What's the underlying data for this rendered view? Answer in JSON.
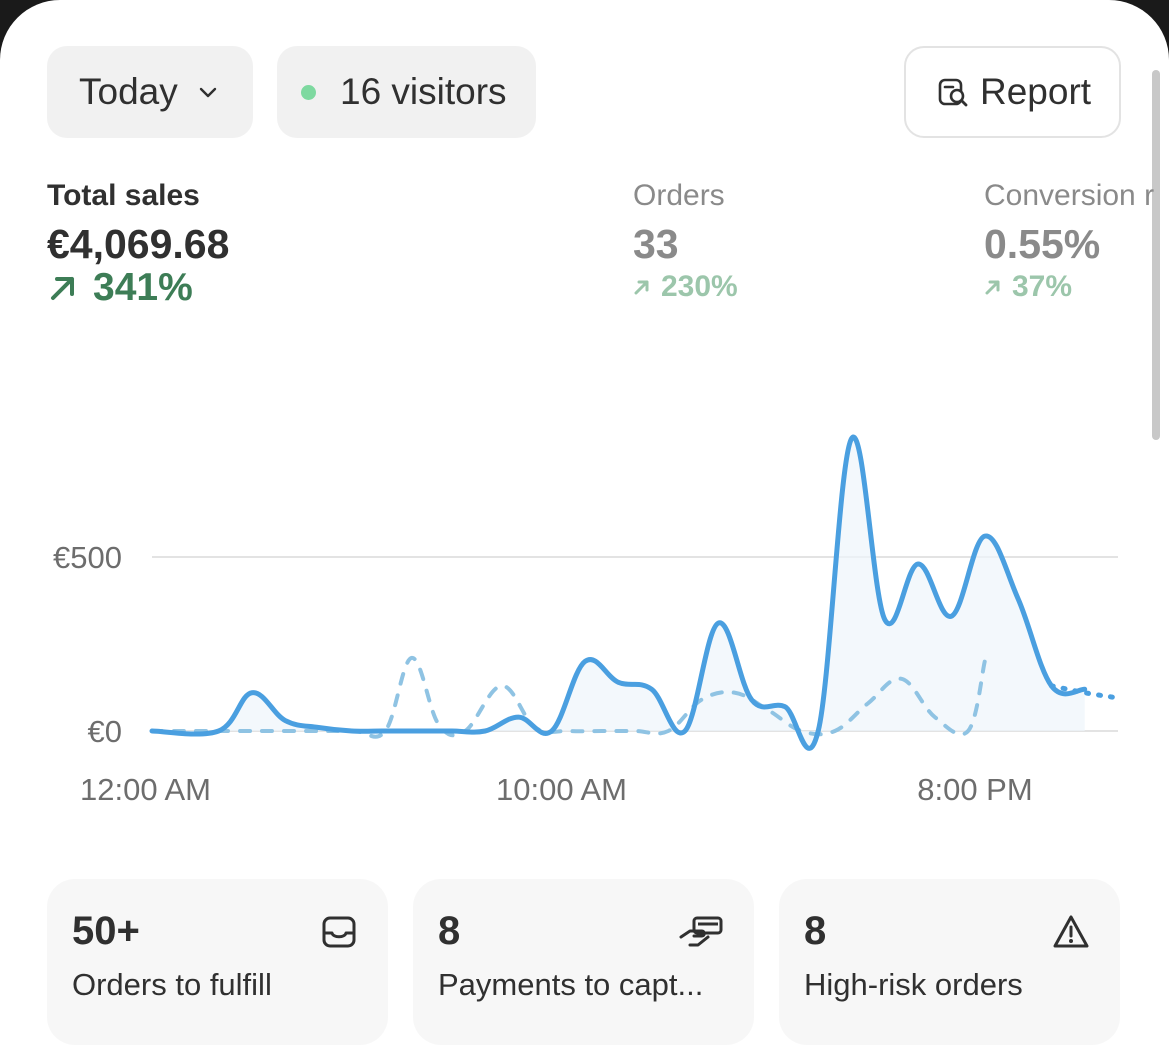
{
  "header": {
    "date_filter": {
      "label": "Today",
      "icon": "chevron-down-icon"
    },
    "visitors": {
      "label": "16 visitors",
      "status_color": "#7ed9a0"
    },
    "report_button": {
      "label": "Report",
      "icon": "report-search-icon"
    }
  },
  "metrics": [
    {
      "label": "Total sales",
      "value": "€4,069.68",
      "delta": "341%",
      "trend": "up"
    },
    {
      "label": "Orders",
      "value": "33",
      "delta": "230%",
      "trend": "up"
    },
    {
      "label": "Conversion r",
      "value": "0.55%",
      "delta": "37%",
      "trend": "up"
    }
  ],
  "colors": {
    "primary_line": "#4a9fe0",
    "comparison_line": "#8fc3e3",
    "positive": "#3d7d56",
    "positive_muted": "#9cc6ab"
  },
  "chart_data": {
    "type": "line",
    "y_ticks": [
      "€0",
      "€500"
    ],
    "x_ticks": [
      "12:00 AM",
      "10:00 AM",
      "8:00 PM"
    ],
    "ylim": [
      0,
      900
    ],
    "grid": true,
    "series": [
      {
        "style": "solid",
        "points": [
          [
            0,
            0
          ],
          [
            2,
            0
          ],
          [
            3,
            110
          ],
          [
            4,
            30
          ],
          [
            5,
            10
          ],
          [
            6,
            0
          ],
          [
            7,
            0
          ],
          [
            8,
            0
          ],
          [
            9,
            0
          ],
          [
            10,
            0
          ],
          [
            11,
            40
          ],
          [
            12,
            0
          ],
          [
            13,
            200
          ],
          [
            14,
            140
          ],
          [
            15,
            120
          ],
          [
            16,
            0
          ],
          [
            17,
            310
          ],
          [
            18,
            90
          ],
          [
            19,
            70
          ],
          [
            20,
            0
          ],
          [
            21,
            840
          ],
          [
            22,
            320
          ],
          [
            23,
            480
          ],
          [
            24,
            330
          ],
          [
            25,
            560
          ],
          [
            26,
            380
          ],
          [
            27,
            130
          ],
          [
            28,
            120
          ]
        ],
        "trailing_dotted": [
          [
            27,
            130
          ],
          [
            28,
            110
          ],
          [
            29,
            95
          ]
        ]
      },
      {
        "style": "dashed",
        "points": [
          [
            0,
            0
          ],
          [
            2,
            0
          ],
          [
            4,
            0
          ],
          [
            6,
            0
          ],
          [
            7,
            0
          ],
          [
            7.8,
            210
          ],
          [
            8.6,
            20
          ],
          [
            9.4,
            0
          ],
          [
            10.5,
            130
          ],
          [
            11.5,
            10
          ],
          [
            12.5,
            0
          ],
          [
            13.5,
            0
          ],
          [
            14.5,
            0
          ],
          [
            15.5,
            0
          ],
          [
            16.5,
            90
          ],
          [
            17.5,
            110
          ],
          [
            18.5,
            60
          ],
          [
            19.5,
            0
          ],
          [
            20.5,
            0
          ],
          [
            21.5,
            80
          ],
          [
            22.5,
            150
          ],
          [
            23.5,
            40
          ],
          [
            24.5,
            0
          ],
          [
            25,
            200
          ]
        ]
      }
    ]
  },
  "cards": [
    {
      "number": "50+",
      "label": "Orders to fulfill",
      "icon": "inbox-icon"
    },
    {
      "number": "8",
      "label": "Payments to capt...",
      "icon": "hand-card-icon"
    },
    {
      "number": "8",
      "label": "High-risk orders",
      "icon": "warning-icon"
    }
  ]
}
